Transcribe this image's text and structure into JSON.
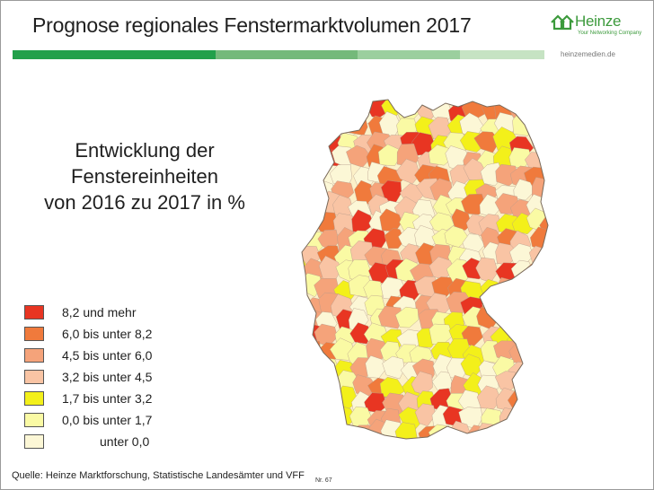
{
  "slide": {
    "title": "Prognose regionales Fenstermarktvolumen 2017",
    "subtitle_line1": "Entwicklung der Fenstereinheiten",
    "subtitle_line2": "von 2016 zu 2017 in %",
    "source": "Quelle: Heinze Marktforschung, Statistische Landesämter und VFF",
    "page_number": "Nr. 67"
  },
  "logo": {
    "name": "Heinze",
    "tagline": "Your Networking Company",
    "url": "heinzemedien.de"
  },
  "colors": {
    "bar_dark": "#22a04a",
    "bar_mid": "#74b97a",
    "bar_light": "#9bcf9e",
    "bar_lightest": "#c6e3c3",
    "brand_green": "#3c9a3c"
  },
  "legend": [
    {
      "label": "8,2 und mehr",
      "color": "#e83522"
    },
    {
      "label": "6,0 bis unter 8,2",
      "color": "#f07a3c"
    },
    {
      "label": "4,5 bis unter 6,0",
      "color": "#f5a37a"
    },
    {
      "label": "3,2 bis unter 4,5",
      "color": "#f9c4a4"
    },
    {
      "label": "1,7 bis unter 3,2",
      "color": "#f3f01a"
    },
    {
      "label": "0,0 bis unter 1,7",
      "color": "#fafaa4"
    },
    {
      "label": "unter  0,0",
      "color": "#fcf7d6"
    }
  ]
}
